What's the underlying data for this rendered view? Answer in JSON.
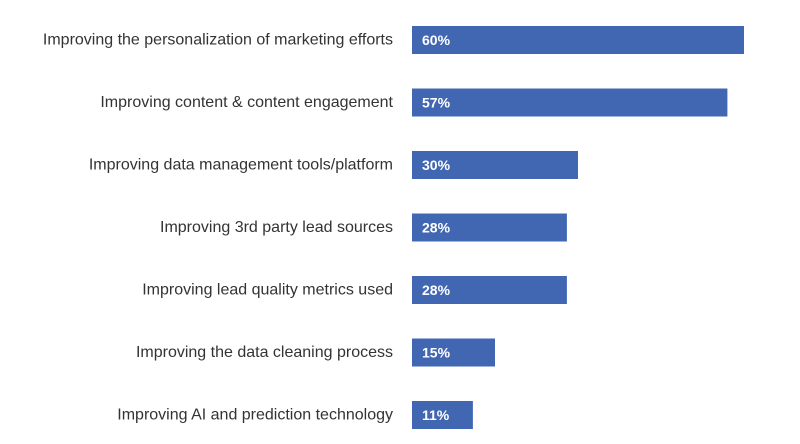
{
  "chart_data": {
    "type": "bar",
    "orientation": "horizontal",
    "categories": [
      "Improving the personalization of marketing efforts",
      "Improving content & content engagement",
      "Improving data management tools/platform",
      "Improving 3rd party lead sources",
      "Improving lead quality metrics used",
      "Improving the data cleaning process",
      "Improving AI and prediction technology"
    ],
    "values": [
      60,
      57,
      30,
      28,
      28,
      15,
      11
    ],
    "value_labels": [
      "60%",
      "57%",
      "30%",
      "28%",
      "28%",
      "15%",
      "11%"
    ],
    "unit": "%",
    "title": "",
    "xlabel": "",
    "ylabel": "",
    "xlim": [
      0,
      60
    ],
    "grid": false,
    "legend": "none",
    "bar_color": "#4267B2",
    "label_color": "#333333",
    "value_label_color": "#ffffff"
  }
}
